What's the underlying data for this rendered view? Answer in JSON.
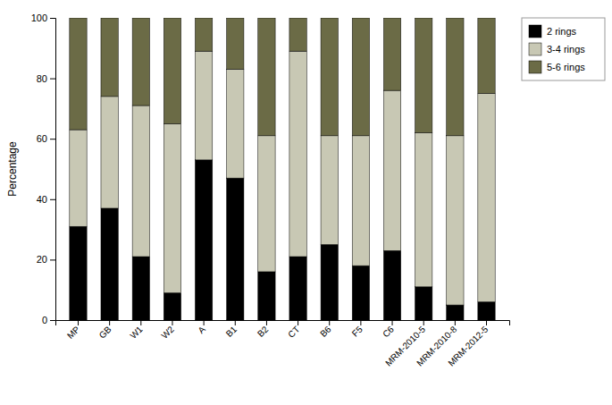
{
  "chart_data": {
    "type": "bar",
    "stacked": true,
    "categories": [
      "MP",
      "GB",
      "W1",
      "W2",
      "A",
      "B1",
      "B2",
      "CT",
      "B6",
      "F5",
      "C6",
      "MRM-2010-5",
      "MRM-2010-8",
      "MRM-2012-5"
    ],
    "series": [
      {
        "name": "2 rings",
        "color": "#000000",
        "values": [
          31,
          37,
          21,
          9,
          53,
          47,
          16,
          21,
          25,
          18,
          23,
          11,
          5,
          6
        ]
      },
      {
        "name": "3-4 rings",
        "color": "#c8c8b4",
        "values": [
          32,
          37,
          50,
          56,
          36,
          36,
          45,
          68,
          36,
          43,
          53,
          51,
          56,
          69
        ]
      },
      {
        "name": "5-6 rings",
        "color": "#6b6b46",
        "values": [
          37,
          26,
          29,
          35,
          11,
          17,
          39,
          11,
          39,
          39,
          24,
          38,
          39,
          25
        ]
      }
    ],
    "ylabel": "Percentage",
    "ylim": [
      0,
      100
    ],
    "yticks": [
      0,
      20,
      40,
      60,
      80,
      100
    ],
    "legend": "upper right",
    "grid": false
  }
}
